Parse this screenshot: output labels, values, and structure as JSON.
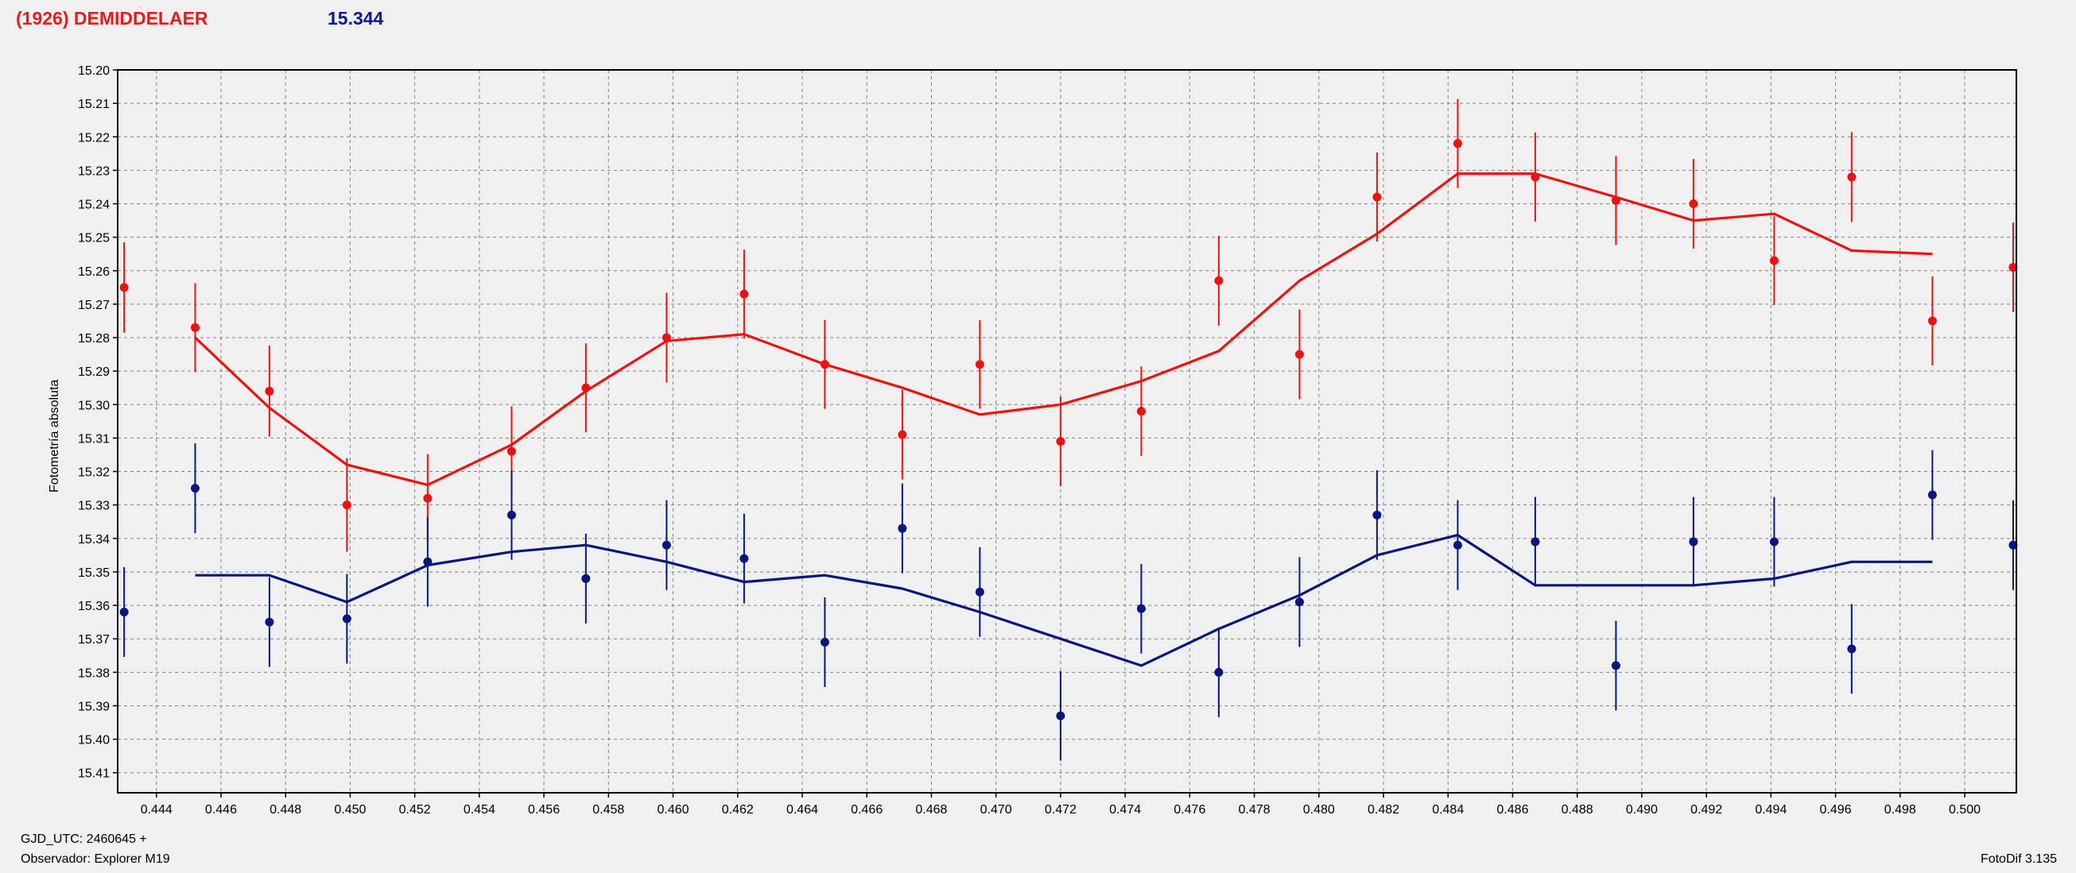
{
  "header": {
    "object_name": "(1926) DEMIDDELAER",
    "magnitude": "15.344"
  },
  "footer": {
    "gjd_utc": "GJD_UTC: 2460645 +",
    "observer": "Observador: Explorer M19",
    "software": "FotoDif 3.135"
  },
  "colors": {
    "series_red": "#ee1111",
    "series_blue": "#0a1680",
    "grid": "#808080",
    "plot_bg": "#f0f0f0"
  },
  "chart_data": {
    "type": "scatter",
    "title": "",
    "xlabel": "",
    "ylabel": "Fotometría absoluta",
    "xlim": [
      0.4428,
      0.5016
    ],
    "ylim": [
      15.2,
      15.416
    ],
    "y_inverted": true,
    "grid": true,
    "x_ticks": [
      0.444,
      0.446,
      0.448,
      0.45,
      0.452,
      0.454,
      0.456,
      0.458,
      0.46,
      0.462,
      0.464,
      0.466,
      0.468,
      0.47,
      0.472,
      0.474,
      0.476,
      0.478,
      0.48,
      0.482,
      0.484,
      0.486,
      0.488,
      0.49,
      0.492,
      0.494,
      0.496,
      0.498,
      0.5
    ],
    "x_tick_labels": [
      "0.444",
      "0.446",
      "0.448",
      "0.450",
      "0.452",
      "0.454",
      "0.456",
      "0.458",
      "0.460",
      "0.462",
      "0.464",
      "0.466",
      "0.468",
      "0.470",
      "0.472",
      "0.474",
      "0.476",
      "0.478",
      "0.480",
      "0.482",
      "0.484",
      "0.486",
      "0.488",
      "0.490",
      "0.492",
      "0.494",
      "0.496",
      "0.498",
      "0.500"
    ],
    "y_ticks": [
      15.2,
      15.21,
      15.22,
      15.23,
      15.24,
      15.25,
      15.26,
      15.27,
      15.28,
      15.29,
      15.3,
      15.31,
      15.32,
      15.33,
      15.34,
      15.35,
      15.36,
      15.37,
      15.38,
      15.39,
      15.4,
      15.41
    ],
    "y_tick_labels": [
      "15.20",
      "15.21",
      "15.22",
      "15.23",
      "15.24",
      "15.25",
      "15.26",
      "15.27",
      "15.28",
      "15.29",
      "15.30",
      "15.31",
      "15.32",
      "15.33",
      "15.34",
      "15.35",
      "15.36",
      "15.37",
      "15.38",
      "15.39",
      "15.40",
      "15.41"
    ],
    "series": [
      {
        "color": "#ee1111",
        "points": [
          {
            "x": 0.443,
            "y": 15.265,
            "err": 0.0135
          },
          {
            "x": 0.4452,
            "y": 15.277,
            "err": 0.0133
          },
          {
            "x": 0.4475,
            "y": 15.296,
            "err": 0.0136
          },
          {
            "x": 0.4499,
            "y": 15.33,
            "err": 0.014
          },
          {
            "x": 0.4524,
            "y": 15.328,
            "err": 0.0132
          },
          {
            "x": 0.455,
            "y": 15.314,
            "err": 0.0135
          },
          {
            "x": 0.4573,
            "y": 15.295,
            "err": 0.0133
          },
          {
            "x": 0.4598,
            "y": 15.28,
            "err": 0.0134
          },
          {
            "x": 0.4622,
            "y": 15.267,
            "err": 0.0133
          },
          {
            "x": 0.4647,
            "y": 15.288,
            "err": 0.0133
          },
          {
            "x": 0.4671,
            "y": 15.309,
            "err": 0.0134
          },
          {
            "x": 0.4695,
            "y": 15.288,
            "err": 0.0132
          },
          {
            "x": 0.472,
            "y": 15.311,
            "err": 0.0134
          },
          {
            "x": 0.4745,
            "y": 15.302,
            "err": 0.0134
          },
          {
            "x": 0.4769,
            "y": 15.263,
            "err": 0.0134
          },
          {
            "x": 0.4794,
            "y": 15.285,
            "err": 0.0134
          },
          {
            "x": 0.4818,
            "y": 15.238,
            "err": 0.0133
          },
          {
            "x": 0.4843,
            "y": 15.222,
            "err": 0.0133
          },
          {
            "x": 0.4867,
            "y": 15.232,
            "err": 0.0133
          },
          {
            "x": 0.4892,
            "y": 15.239,
            "err": 0.0133
          },
          {
            "x": 0.4916,
            "y": 15.24,
            "err": 0.0134
          },
          {
            "x": 0.4941,
            "y": 15.257,
            "err": 0.0133
          },
          {
            "x": 0.4965,
            "y": 15.232,
            "err": 0.0134
          },
          {
            "x": 0.499,
            "y": 15.275,
            "err": 0.0133
          },
          {
            "x": 0.5015,
            "y": 15.259,
            "err": 0.0134
          }
        ],
        "trend": [
          {
            "x": 0.4452,
            "y": 15.28
          },
          {
            "x": 0.4475,
            "y": 15.301
          },
          {
            "x": 0.4499,
            "y": 15.318
          },
          {
            "x": 0.4524,
            "y": 15.324
          },
          {
            "x": 0.455,
            "y": 15.312
          },
          {
            "x": 0.4573,
            "y": 15.296
          },
          {
            "x": 0.4598,
            "y": 15.281
          },
          {
            "x": 0.4622,
            "y": 15.279
          },
          {
            "x": 0.4647,
            "y": 15.288
          },
          {
            "x": 0.4671,
            "y": 15.295
          },
          {
            "x": 0.4695,
            "y": 15.303
          },
          {
            "x": 0.472,
            "y": 15.3
          },
          {
            "x": 0.4745,
            "y": 15.293
          },
          {
            "x": 0.4769,
            "y": 15.284
          },
          {
            "x": 0.4794,
            "y": 15.263
          },
          {
            "x": 0.4818,
            "y": 15.249
          },
          {
            "x": 0.4843,
            "y": 15.231
          },
          {
            "x": 0.4867,
            "y": 15.231
          },
          {
            "x": 0.4892,
            "y": 15.238
          },
          {
            "x": 0.4916,
            "y": 15.245
          },
          {
            "x": 0.4941,
            "y": 15.243
          },
          {
            "x": 0.4965,
            "y": 15.254
          },
          {
            "x": 0.499,
            "y": 15.255
          }
        ]
      },
      {
        "color": "#0a1680",
        "points": [
          {
            "x": 0.443,
            "y": 15.362,
            "err": 0.0134
          },
          {
            "x": 0.4452,
            "y": 15.325,
            "err": 0.0134
          },
          {
            "x": 0.4475,
            "y": 15.365,
            "err": 0.0134
          },
          {
            "x": 0.4499,
            "y": 15.364,
            "err": 0.0134
          },
          {
            "x": 0.4524,
            "y": 15.347,
            "err": 0.0134
          },
          {
            "x": 0.455,
            "y": 15.333,
            "err": 0.0134
          },
          {
            "x": 0.4573,
            "y": 15.352,
            "err": 0.0134
          },
          {
            "x": 0.4598,
            "y": 15.342,
            "err": 0.0134
          },
          {
            "x": 0.4622,
            "y": 15.346,
            "err": 0.0134
          },
          {
            "x": 0.4647,
            "y": 15.371,
            "err": 0.0134
          },
          {
            "x": 0.4671,
            "y": 15.337,
            "err": 0.0134
          },
          {
            "x": 0.4695,
            "y": 15.356,
            "err": 0.0134
          },
          {
            "x": 0.472,
            "y": 15.393,
            "err": 0.0134
          },
          {
            "x": 0.4745,
            "y": 15.361,
            "err": 0.0134
          },
          {
            "x": 0.4769,
            "y": 15.38,
            "err": 0.0134
          },
          {
            "x": 0.4794,
            "y": 15.359,
            "err": 0.0134
          },
          {
            "x": 0.4818,
            "y": 15.333,
            "err": 0.0134
          },
          {
            "x": 0.4843,
            "y": 15.342,
            "err": 0.0134
          },
          {
            "x": 0.4867,
            "y": 15.341,
            "err": 0.0134
          },
          {
            "x": 0.4892,
            "y": 15.378,
            "err": 0.0134
          },
          {
            "x": 0.4916,
            "y": 15.341,
            "err": 0.0134
          },
          {
            "x": 0.4941,
            "y": 15.341,
            "err": 0.0134
          },
          {
            "x": 0.4965,
            "y": 15.373,
            "err": 0.0134
          },
          {
            "x": 0.499,
            "y": 15.327,
            "err": 0.0134
          },
          {
            "x": 0.5015,
            "y": 15.342,
            "err": 0.0134
          }
        ],
        "trend": [
          {
            "x": 0.4452,
            "y": 15.351
          },
          {
            "x": 0.4475,
            "y": 15.351
          },
          {
            "x": 0.4499,
            "y": 15.359
          },
          {
            "x": 0.4524,
            "y": 15.348
          },
          {
            "x": 0.455,
            "y": 15.344
          },
          {
            "x": 0.4573,
            "y": 15.342
          },
          {
            "x": 0.4598,
            "y": 15.347
          },
          {
            "x": 0.4622,
            "y": 15.353
          },
          {
            "x": 0.4647,
            "y": 15.351
          },
          {
            "x": 0.4671,
            "y": 15.355
          },
          {
            "x": 0.4695,
            "y": 15.362
          },
          {
            "x": 0.472,
            "y": 15.37
          },
          {
            "x": 0.4745,
            "y": 15.378
          },
          {
            "x": 0.4769,
            "y": 15.367
          },
          {
            "x": 0.4794,
            "y": 15.357
          },
          {
            "x": 0.4818,
            "y": 15.345
          },
          {
            "x": 0.4843,
            "y": 15.339
          },
          {
            "x": 0.4867,
            "y": 15.354
          },
          {
            "x": 0.4892,
            "y": 15.354
          },
          {
            "x": 0.4916,
            "y": 15.354
          },
          {
            "x": 0.4941,
            "y": 15.352
          },
          {
            "x": 0.4965,
            "y": 15.347
          },
          {
            "x": 0.499,
            "y": 15.347
          }
        ]
      }
    ]
  }
}
